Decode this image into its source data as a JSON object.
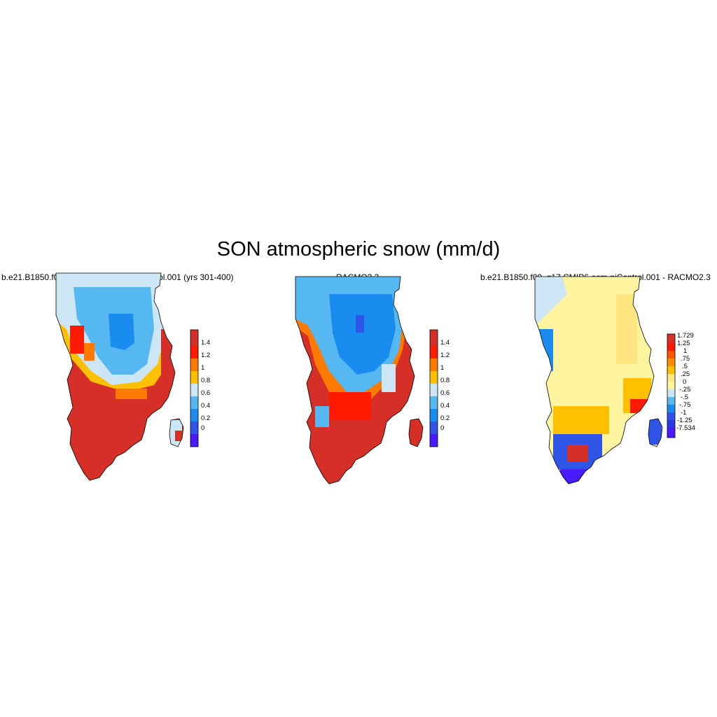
{
  "figure": {
    "title": "SON atmospheric snow (mm/d)"
  },
  "panels": [
    {
      "title": "b.e21.B1850.f09_g17.CMIP6-esm-piControl.001 (yrs 301-400)",
      "colorbar_labels": [
        "1.4",
        "1.2",
        "1",
        "0.8",
        "0.6",
        "0.4",
        "0.2",
        "0"
      ],
      "colorbar_colors": [
        "#d62f27",
        "#ff1a00",
        "#ff7a00",
        "#ffc000",
        "#cce6f5",
        "#55b8f0",
        "#1a8cf0",
        "#2e55e6",
        "#4a1aff"
      ]
    },
    {
      "title": "RACMO2.3",
      "colorbar_labels": [
        "1.4",
        "1.2",
        "1",
        "0.8",
        "0.6",
        "0.4",
        "0.2",
        "0"
      ],
      "colorbar_colors": [
        "#d62f27",
        "#ff1a00",
        "#ff7a00",
        "#ffc000",
        "#cce6f5",
        "#55b8f0",
        "#1a8cf0",
        "#2e55e6",
        "#4a1aff"
      ]
    },
    {
      "title": "b.e21.B1850.f09_g17.CMIP6-esm-piControl.001 - RACMO2.3",
      "colorbar_labels": [
        "1.729",
        "1.25",
        "1",
        ".75",
        ".5",
        ".25",
        "0",
        "-.25",
        "-.5",
        "-.75",
        "-1",
        "-1.25",
        "-7.534"
      ],
      "colorbar_colors": [
        "#d62f27",
        "#ff1a00",
        "#ff5500",
        "#ff8c00",
        "#ffc000",
        "#ffe680",
        "#fff5a0",
        "#cce6f5",
        "#55b8f0",
        "#1a8cf0",
        "#2e55e6",
        "#2a3ae6",
        "#4a1aff"
      ]
    }
  ]
}
